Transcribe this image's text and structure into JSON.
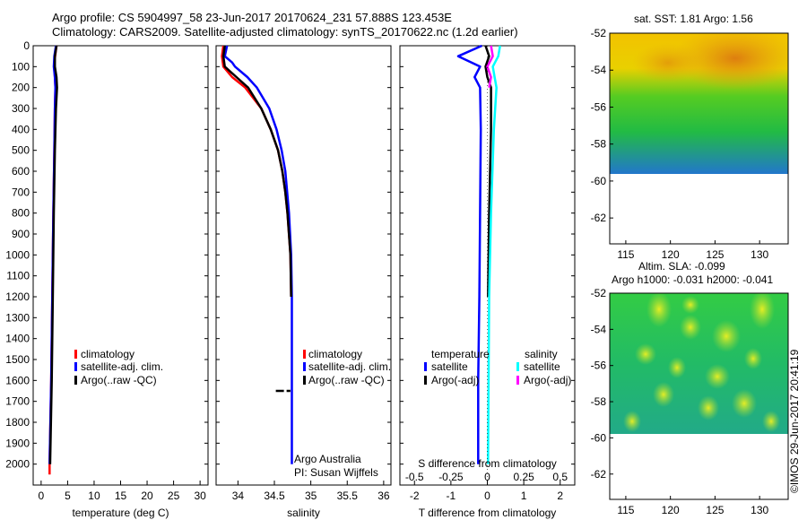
{
  "title_line1": "Argo profile: CS 5904997_58 23-Jun-2017 20170624_231 57.888S 123.453E",
  "title_line2": "Climatology: CARS2009. Satellite-adjusted climatology: synTS_20170622.nc (1.2d earlier)",
  "credit": "©IMOS 29-Jun-2017 20:41:19",
  "colors": {
    "red": "#ff0000",
    "blue": "#0000ff",
    "black": "#000000",
    "cyan": "#00ffff",
    "magenta": "#ff00ff"
  },
  "chart_data": [
    {
      "id": "temp",
      "type": "line",
      "xlabel": "temperature (deg C)",
      "ylim": [
        2100,
        0
      ],
      "xlim": [
        -1.5,
        31.5
      ],
      "yticks": [
        0,
        100,
        200,
        300,
        400,
        500,
        600,
        700,
        800,
        900,
        1000,
        1100,
        1200,
        1300,
        1400,
        1500,
        1600,
        1700,
        1800,
        1900,
        2000
      ],
      "xticks": [
        0,
        5,
        10,
        15,
        20,
        25,
        30
      ],
      "legend": [
        "climatology",
        "satellite-adj. clim.",
        "Argo(..raw -QC)"
      ],
      "series": [
        {
          "name": "climatology",
          "color": "red",
          "depth": [
            0,
            60,
            100,
            150,
            200,
            300,
            500,
            800,
            1200,
            1600,
            2000,
            2050
          ],
          "values": [
            2.9,
            2.6,
            2.5,
            2.6,
            2.7,
            2.6,
            2.5,
            2.3,
            2.1,
            1.9,
            1.6,
            1.6
          ]
        },
        {
          "name": "satellite-adj. clim.",
          "color": "blue",
          "depth": [
            0,
            50,
            100,
            150,
            200,
            300,
            500,
            800,
            1200,
            1600,
            2000
          ],
          "values": [
            2.8,
            2.5,
            2.4,
            2.6,
            2.7,
            2.6,
            2.5,
            2.3,
            2.1,
            1.9,
            1.6
          ]
        },
        {
          "name": "Argo(..raw -QC)",
          "color": "black",
          "depth": [
            0,
            50,
            100,
            150,
            200,
            300,
            500,
            800,
            1200,
            1600,
            2000
          ],
          "values": [
            2.9,
            2.6,
            2.6,
            2.9,
            3.0,
            2.8,
            2.6,
            2.4,
            2.2,
            2.0,
            1.7
          ]
        }
      ]
    },
    {
      "id": "sal",
      "type": "line",
      "xlabel": "salinity",
      "xlim": [
        33.7,
        36.1
      ],
      "ylim": [
        2100,
        0
      ],
      "xticks": [
        34,
        34.5,
        35,
        35.5,
        36
      ],
      "legend": [
        "climatology",
        "satellite-adj. clim.",
        "Argo(..raw -QC)"
      ],
      "series": [
        {
          "name": "climatology",
          "color": "red",
          "depth": [
            0,
            50,
            100,
            150,
            200,
            300,
            400,
            500,
            600,
            700,
            800,
            1000,
            1200
          ],
          "values": [
            33.8,
            33.78,
            33.8,
            33.92,
            34.1,
            34.32,
            34.45,
            34.55,
            34.61,
            34.65,
            34.68,
            34.72,
            34.73
          ]
        },
        {
          "name": "satellite-adj. clim.",
          "color": "blue",
          "depth": [
            0,
            50,
            80,
            100,
            150,
            200,
            300,
            400,
            500,
            600,
            800,
            1000,
            1200,
            1600,
            2000
          ],
          "values": [
            33.85,
            33.82,
            33.92,
            33.96,
            34.13,
            34.26,
            34.43,
            34.53,
            34.6,
            34.65,
            34.7,
            34.73,
            34.74,
            34.74,
            34.74
          ]
        },
        {
          "name": "Argo(..raw -QC)",
          "color": "black",
          "depth": [
            0,
            50,
            100,
            150,
            200,
            300,
            400,
            500,
            600,
            700,
            800,
            1000,
            1200
          ],
          "values": [
            33.82,
            33.8,
            33.82,
            33.98,
            34.14,
            34.32,
            34.45,
            34.55,
            34.61,
            34.65,
            34.68,
            34.72,
            34.73
          ]
        }
      ],
      "annotation_line1": "Argo Australia",
      "annotation_line2": "PI: Susan Wijffels"
    },
    {
      "id": "diff",
      "type": "line",
      "xlabel": "T difference from climatology",
      "top_label": "S difference from climatology",
      "xlim": [
        -2.4,
        2.4
      ],
      "ylim": [
        2100,
        0
      ],
      "xticks": [
        -2,
        -1,
        0,
        1,
        2
      ],
      "top_ticks": [
        "-0.5",
        "-0.25",
        "0",
        "0.25",
        "0.5"
      ],
      "legend_titles": [
        "temperature",
        "salinity"
      ],
      "legend": [
        "satellite",
        "Argo(-adj)",
        "satellite",
        "Argo(-adj)"
      ],
      "series": [
        {
          "name": "satellite",
          "quantity": "temperature",
          "color": "blue",
          "depth": [
            0,
            50,
            100,
            150,
            200,
            400,
            800,
            1200,
            1600,
            2000
          ],
          "values": [
            -0.15,
            -0.8,
            -0.2,
            -0.35,
            -0.2,
            -0.18,
            -0.2,
            -0.22,
            -0.25,
            -0.25
          ]
        },
        {
          "name": "Argo(-adj)",
          "quantity": "temperature",
          "color": "black",
          "depth": [
            0,
            50,
            100,
            150,
            200,
            400,
            800,
            1200
          ],
          "values": [
            -0.05,
            0.05,
            -0.05,
            0.0,
            0.1,
            0.1,
            0.05,
            0.02
          ]
        },
        {
          "name": "satellite",
          "quantity": "salinity",
          "color": "cyan",
          "depth": [
            0,
            50,
            100,
            150,
            200,
            400,
            800,
            1200,
            2000
          ],
          "values": [
            0.35,
            0.3,
            0.15,
            0.2,
            0.25,
            0.18,
            0.1,
            0.05,
            0.02
          ]
        },
        {
          "name": "Argo(-adj)",
          "quantity": "salinity",
          "color": "magenta",
          "depth": [
            0,
            50,
            100,
            150,
            200
          ],
          "values": [
            0.1,
            0.15,
            0.0,
            0.1,
            0.05
          ]
        }
      ]
    },
    {
      "id": "sst_map",
      "type": "heatmap",
      "title": "sat. SST: 1.81  Argo: 1.56",
      "yticks": [
        -52,
        -54,
        -56,
        -58,
        -60,
        -62
      ],
      "xticks": [
        115,
        120,
        125,
        130
      ]
    },
    {
      "id": "sla_map",
      "type": "heatmap",
      "title_line1": "Altim. SLA: -0.099",
      "title_line2": "Argo h1000: -0.031  h2000: -0.041",
      "yticks": [
        -52,
        -54,
        -56,
        -58,
        -60,
        -62
      ],
      "xticks": [
        115,
        120,
        125,
        130
      ]
    }
  ]
}
